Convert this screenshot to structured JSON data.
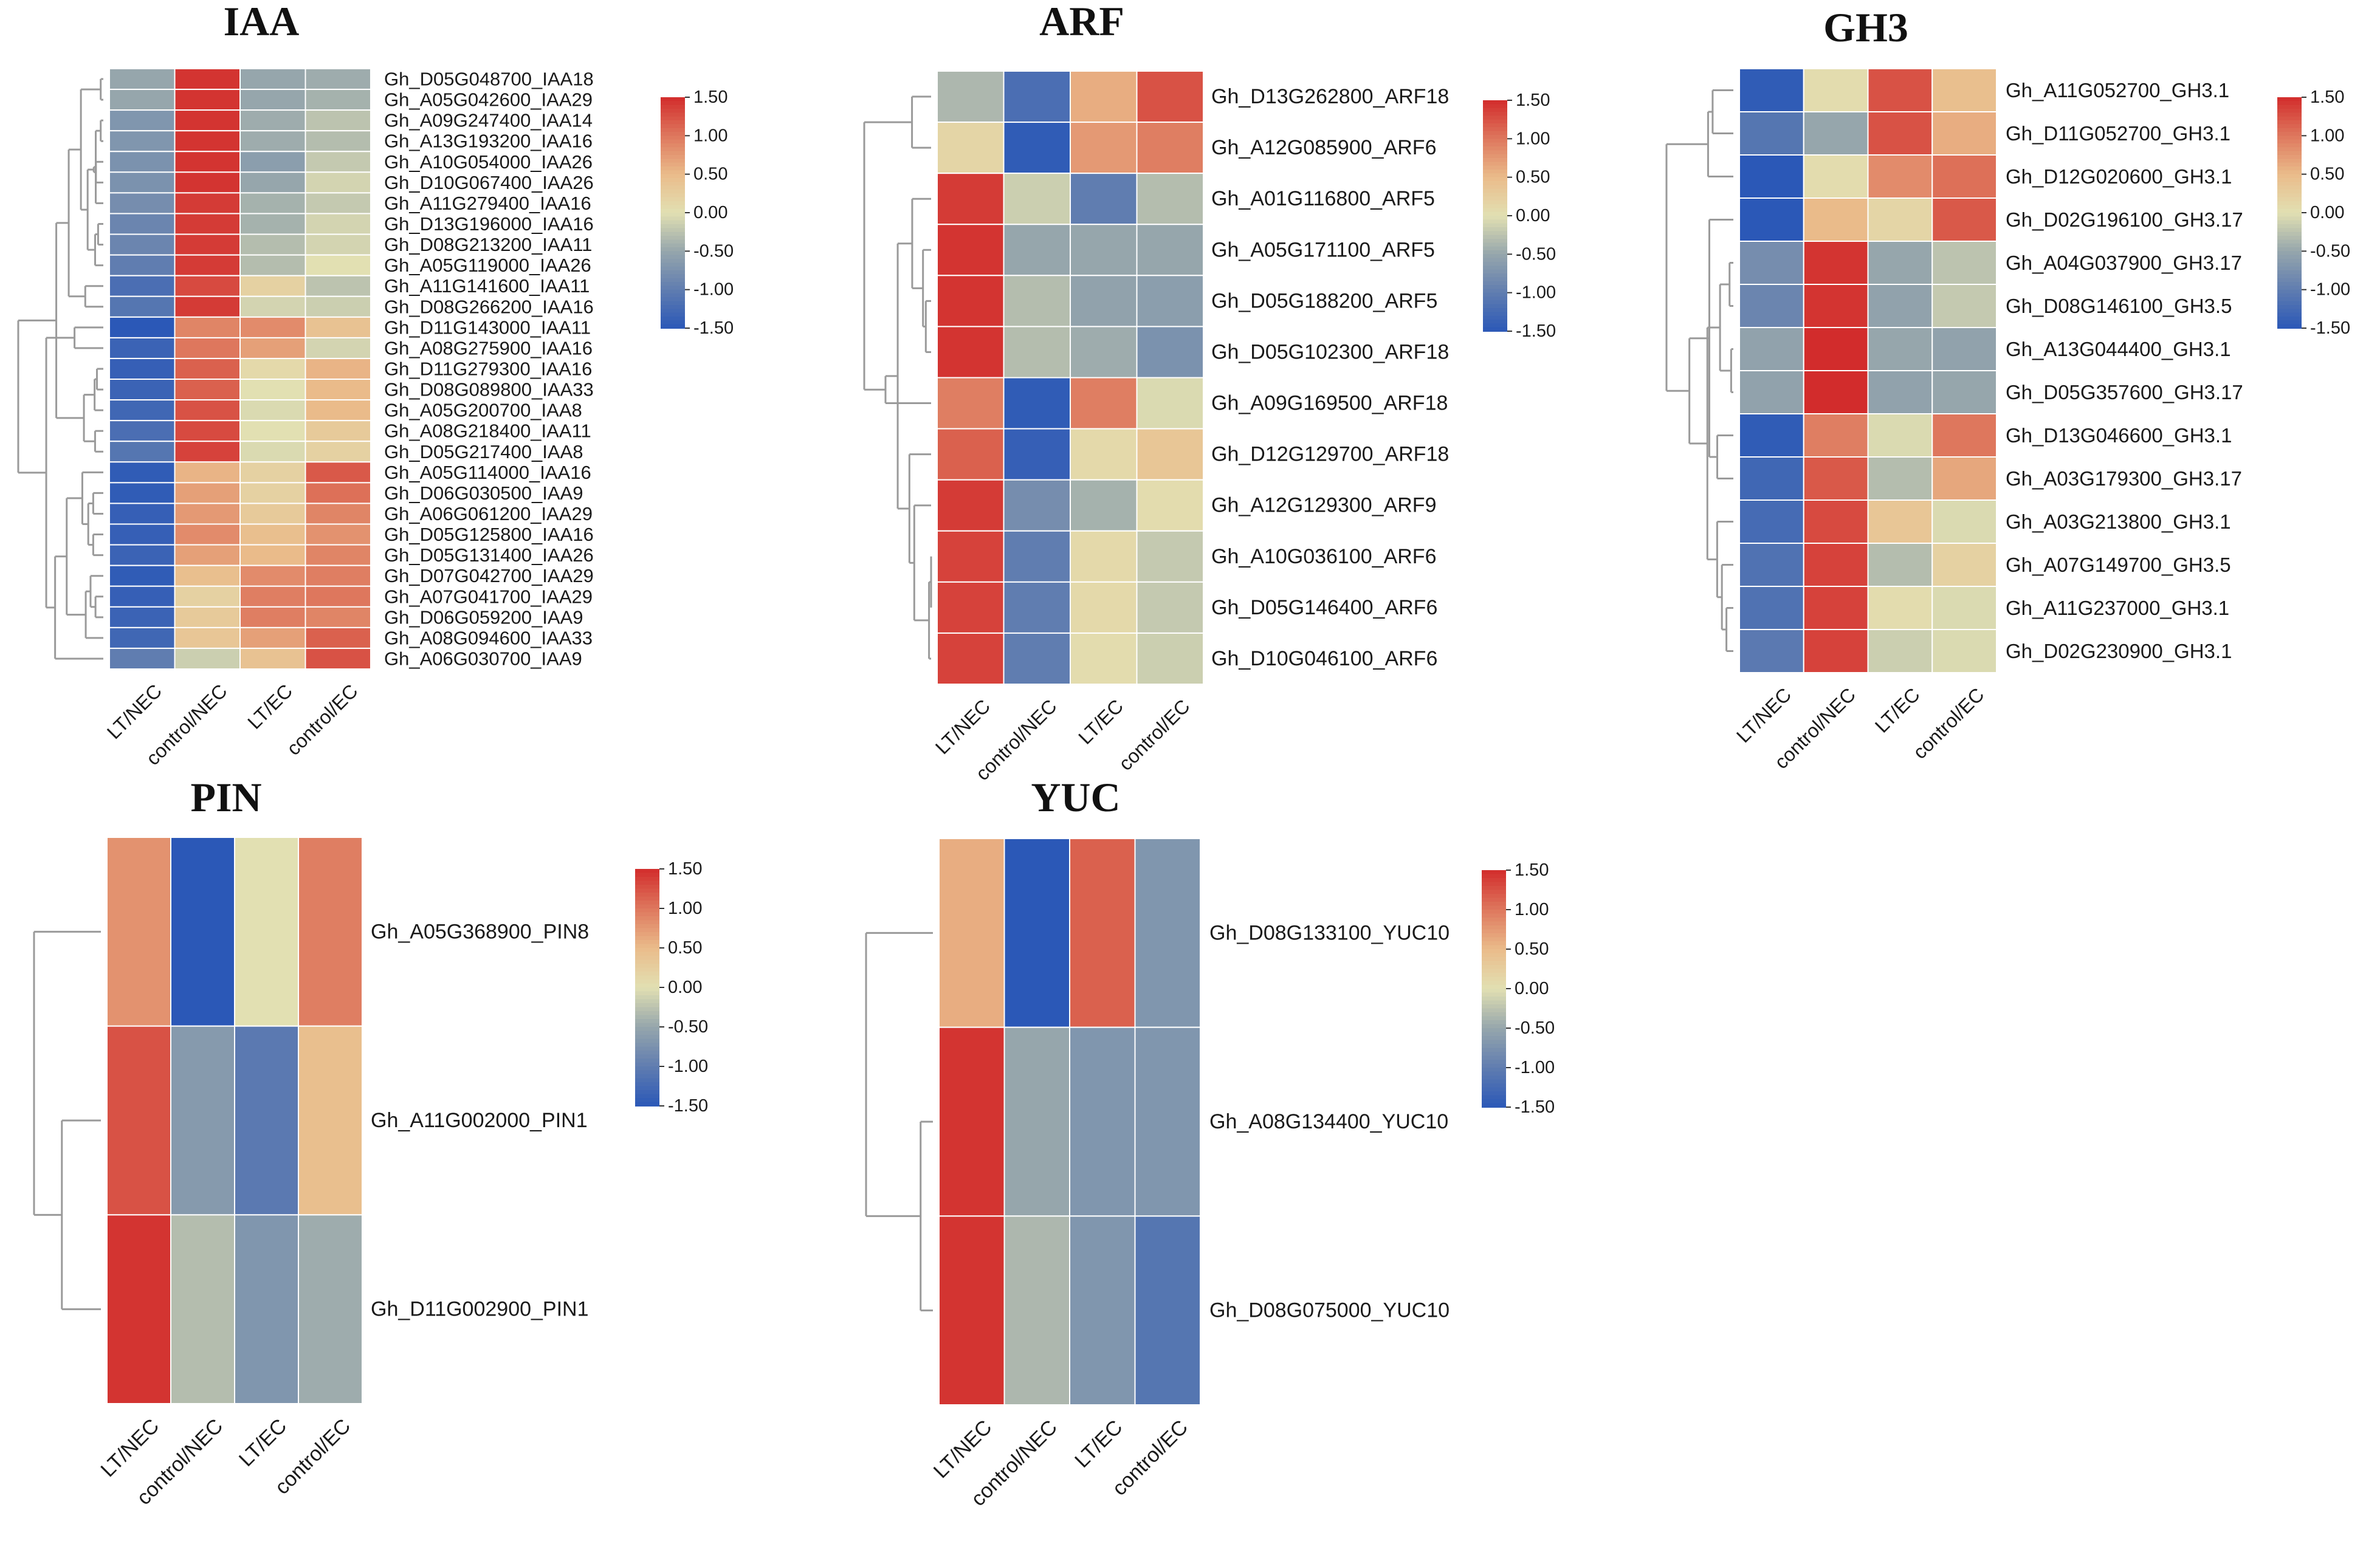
{
  "chart_data": [
    {
      "type": "heatmap",
      "title": "IAA",
      "columns": [
        "LT/NEC",
        "control/NEC",
        "LT/EC",
        "control/EC"
      ],
      "rows": [
        "Gh_D05G048700_IAA18",
        "Gh_A05G042600_IAA29",
        "Gh_A09G247400_IAA14",
        "Gh_A13G193200_IAA16",
        "Gh_A10G054000_IAA26",
        "Gh_D10G067400_IAA26",
        "Gh_A11G279400_IAA16",
        "Gh_D13G196000_IAA16",
        "Gh_D08G213200_IAA11",
        "Gh_A05G119000_IAA26",
        "Gh_A11G141600_IAA11",
        "Gh_D08G266200_IAA16",
        "Gh_D11G143000_IAA11",
        "Gh_A08G275900_IAA16",
        "Gh_D11G279300_IAA16",
        "Gh_D08G089800_IAA33",
        "Gh_A05G200700_IAA8",
        "Gh_A08G218400_IAA11",
        "Gh_D05G217400_IAA8",
        "Gh_A05G114000_IAA16",
        "Gh_D06G030500_IAA9",
        "Gh_A06G061200_IAA29",
        "Gh_D05G125800_IAA16",
        "Gh_D05G131400_IAA26",
        "Gh_D07G042700_IAA29",
        "Gh_A07G041700_IAA29",
        "Gh_D06G059200_IAA9",
        "Gh_A08G094600_IAA33",
        "Gh_A06G030700_IAA9"
      ],
      "values": [
        [
          -0.5,
          1.45,
          -0.5,
          -0.45
        ],
        [
          -0.5,
          1.45,
          -0.5,
          -0.4
        ],
        [
          -0.7,
          1.45,
          -0.45,
          -0.25
        ],
        [
          -0.7,
          1.45,
          -0.45,
          -0.3
        ],
        [
          -0.75,
          1.45,
          -0.6,
          -0.2
        ],
        [
          -0.75,
          1.45,
          -0.5,
          -0.1
        ],
        [
          -0.8,
          1.4,
          -0.4,
          -0.2
        ],
        [
          -0.9,
          1.4,
          -0.4,
          -0.1
        ],
        [
          -0.9,
          1.4,
          -0.3,
          -0.1
        ],
        [
          -1.0,
          1.4,
          -0.3,
          0.0
        ],
        [
          -1.2,
          1.3,
          0.2,
          -0.25
        ],
        [
          -1.1,
          1.4,
          -0.1,
          -0.15
        ],
        [
          -1.5,
          0.9,
          0.85,
          0.4
        ],
        [
          -1.35,
          1.0,
          0.7,
          -0.1
        ],
        [
          -1.4,
          1.15,
          0.1,
          0.55
        ],
        [
          -1.35,
          1.15,
          0.0,
          0.5
        ],
        [
          -1.3,
          1.25,
          -0.05,
          0.5
        ],
        [
          -1.2,
          1.3,
          0.0,
          0.3
        ],
        [
          -1.1,
          1.35,
          -0.05,
          0.2
        ],
        [
          -1.45,
          0.55,
          0.2,
          1.2
        ],
        [
          -1.45,
          0.7,
          0.2,
          1.05
        ],
        [
          -1.4,
          0.75,
          0.3,
          0.9
        ],
        [
          -1.4,
          0.85,
          0.45,
          0.8
        ],
        [
          -1.35,
          0.7,
          0.5,
          0.9
        ],
        [
          -1.45,
          0.45,
          0.85,
          0.95
        ],
        [
          -1.4,
          0.2,
          0.95,
          1.0
        ],
        [
          -1.35,
          0.3,
          0.95,
          0.9
        ],
        [
          -1.3,
          0.35,
          0.7,
          1.15
        ],
        [
          -1.0,
          -0.15,
          0.4,
          1.25
        ]
      ],
      "colorbar": {
        "ticks": [
          "1.50",
          "1.00",
          "0.50",
          "0.00",
          "-0.50",
          "-1.00",
          "-1.50"
        ],
        "vmin": -1.5,
        "vmax": 1.5
      }
    },
    {
      "type": "heatmap",
      "title": "ARF",
      "columns": [
        "LT/NEC",
        "control/NEC",
        "LT/EC",
        "control/EC"
      ],
      "rows": [
        "Gh_D13G262800_ARF18",
        "Gh_A12G085900_ARF6",
        "Gh_A01G116800_ARF5",
        "Gh_A05G171100_ARF5",
        "Gh_D05G188200_ARF5",
        "Gh_D05G102300_ARF18",
        "Gh_A09G169500_ARF18",
        "Gh_D12G129700_ARF18",
        "Gh_A12G129300_ARF9",
        "Gh_A10G036100_ARF6",
        "Gh_D05G146400_ARF6",
        "Gh_D10G046100_ARF6"
      ],
      "values": [
        [
          -0.35,
          -1.2,
          0.6,
          1.25
        ],
        [
          0.15,
          -1.45,
          0.75,
          0.95
        ],
        [
          1.4,
          -0.15,
          -1.0,
          -0.3
        ],
        [
          1.45,
          -0.5,
          -0.5,
          -0.5
        ],
        [
          1.45,
          -0.3,
          -0.55,
          -0.6
        ],
        [
          1.45,
          -0.3,
          -0.45,
          -0.75
        ],
        [
          0.95,
          -1.45,
          0.95,
          -0.05
        ],
        [
          1.15,
          -1.4,
          0.1,
          0.35
        ],
        [
          1.4,
          -0.8,
          -0.4,
          0.05
        ],
        [
          1.35,
          -1.0,
          0.1,
          -0.2
        ],
        [
          1.35,
          -1.0,
          0.1,
          -0.2
        ],
        [
          1.35,
          -1.0,
          0.05,
          -0.15
        ]
      ],
      "colorbar": {
        "ticks": [
          "1.50",
          "1.00",
          "0.50",
          "0.00",
          "-0.50",
          "-1.00",
          "-1.50"
        ],
        "vmin": -1.5,
        "vmax": 1.5
      }
    },
    {
      "type": "heatmap",
      "title": "GH3",
      "columns": [
        "LT/NEC",
        "control/NEC",
        "LT/EC",
        "control/EC"
      ],
      "rows": [
        "Gh_A11G052700_GH3.1",
        "Gh_D11G052700_GH3.1",
        "Gh_D12G020600_GH3.1",
        "Gh_D02G196100_GH3.17",
        "Gh_A04G037900_GH3.17",
        "Gh_D08G146100_GH3.5",
        "Gh_A13G044400_GH3.1",
        "Gh_D05G357600_GH3.17",
        "Gh_D13G046600_GH3.1",
        "Gh_A03G179300_GH3.17",
        "Gh_A03G213800_GH3.1",
        "Gh_A07G149700_GH3.5",
        "Gh_A11G237000_GH3.1",
        "Gh_D02G230900_GH3.1"
      ],
      "values": [
        [
          -1.45,
          0.05,
          1.25,
          0.45
        ],
        [
          -1.1,
          -0.5,
          1.25,
          0.6
        ],
        [
          -1.5,
          0.05,
          0.85,
          1.05
        ],
        [
          -1.5,
          0.5,
          0.15,
          1.2
        ],
        [
          -0.8,
          1.45,
          -0.5,
          -0.25
        ],
        [
          -0.9,
          1.45,
          -0.55,
          -0.2
        ],
        [
          -0.55,
          1.5,
          -0.5,
          -0.55
        ],
        [
          -0.55,
          1.5,
          -0.55,
          -0.5
        ],
        [
          -1.45,
          0.95,
          -0.05,
          1.0
        ],
        [
          -1.3,
          1.2,
          -0.3,
          0.65
        ],
        [
          -1.25,
          1.3,
          0.35,
          -0.05
        ],
        [
          -1.15,
          1.35,
          -0.3,
          0.2
        ],
        [
          -1.15,
          1.35,
          0.05,
          -0.05
        ],
        [
          -1.05,
          1.35,
          -0.15,
          -0.05
        ]
      ],
      "colorbar": {
        "ticks": [
          "1.50",
          "1.00",
          "0.50",
          "0.00",
          "-0.50",
          "-1.00",
          "-1.50"
        ],
        "vmin": -1.5,
        "vmax": 1.5
      }
    },
    {
      "type": "heatmap",
      "title": "PIN",
      "columns": [
        "LT/NEC",
        "control/NEC",
        "LT/EC",
        "control/EC"
      ],
      "rows": [
        "Gh_A05G368900_PIN8",
        "Gh_A11G002000_PIN1",
        "Gh_D11G002900_PIN1"
      ],
      "values": [
        [
          0.8,
          -1.5,
          0.0,
          0.95
        ],
        [
          1.25,
          -0.65,
          -1.05,
          0.45
        ],
        [
          1.45,
          -0.3,
          -0.7,
          -0.45
        ]
      ],
      "colorbar": {
        "ticks": [
          "1.50",
          "1.00",
          "0.50",
          "0.00",
          "-0.50",
          "-1.00",
          "-1.50"
        ],
        "vmin": -1.5,
        "vmax": 1.5
      }
    },
    {
      "type": "heatmap",
      "title": "YUC",
      "columns": [
        "LT/NEC",
        "control/NEC",
        "LT/EC",
        "control/EC"
      ],
      "rows": [
        "Gh_D08G133100_YUC10",
        "Gh_A08G134400_YUC10",
        "Gh_D08G075000_YUC10"
      ],
      "values": [
        [
          0.6,
          -1.5,
          1.15,
          -0.7
        ],
        [
          1.45,
          -0.5,
          -0.7,
          -0.7
        ],
        [
          1.45,
          -0.35,
          -0.7,
          -1.1
        ]
      ],
      "colorbar": {
        "ticks": [
          "1.50",
          "1.00",
          "0.50",
          "0.00",
          "-0.50",
          "-1.00",
          "-1.50"
        ],
        "vmin": -1.5,
        "vmax": 1.5
      }
    }
  ]
}
